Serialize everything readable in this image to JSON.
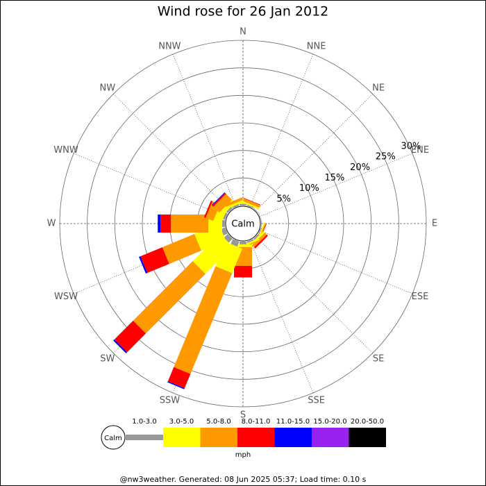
{
  "chart_data": {
    "type": "windrose",
    "title": "Wind rose for 26 Jan 2012",
    "center_label": "Calm",
    "directions": [
      "N",
      "NNE",
      "NE",
      "ENE",
      "E",
      "ESE",
      "SE",
      "SSE",
      "S",
      "SSW",
      "SW",
      "WSW",
      "W",
      "WNW",
      "NW",
      "NNW"
    ],
    "rlim": [
      0,
      30
    ],
    "rticks": [
      {
        "value": 5,
        "label": "5%"
      },
      {
        "value": 10,
        "label": "10%"
      },
      {
        "value": 15,
        "label": "15%"
      },
      {
        "value": 20,
        "label": "20%"
      },
      {
        "value": 25,
        "label": "25%"
      },
      {
        "value": 30,
        "label": "30%"
      }
    ],
    "units": "mph",
    "series": [
      {
        "name": "1.0-3.0",
        "color": "#999999",
        "values": [
          0.3,
          0.2,
          0.1,
          0.1,
          0.1,
          0.2,
          0.3,
          0.3,
          0.5,
          1.0,
          1.0,
          0.8,
          0.5,
          0.4,
          0.4,
          0.3
        ]
      },
      {
        "name": "3.0-5.0",
        "color": "#ffff00",
        "values": [
          0.2,
          0.3,
          0,
          0,
          0,
          0.2,
          0.4,
          0.3,
          0.5,
          4.8,
          7.0,
          4.8,
          2.5,
          1.5,
          0.8,
          0.4
        ]
      },
      {
        "name": "5.0-8.0",
        "color": "#ff9900",
        "values": [
          0.1,
          0.5,
          0,
          0,
          0,
          0.2,
          0.5,
          0.2,
          3.4,
          19.8,
          15.3,
          6.3,
          6.8,
          1.5,
          1.5,
          0.5
        ]
      },
      {
        "name": "8.0-11.0",
        "color": "#ff0000",
        "values": [
          0,
          0.1,
          0,
          0,
          0,
          0.1,
          0.3,
          0,
          2.1,
          2.8,
          4.8,
          4.3,
          1.9,
          0.3,
          0.3,
          0
        ]
      },
      {
        "name": "11.0-15.0",
        "color": "#0000ff",
        "values": [
          0,
          0,
          0,
          0,
          0,
          0,
          0,
          0,
          0,
          0.2,
          0.3,
          0.3,
          0.5,
          0,
          0.1,
          0
        ]
      },
      {
        "name": "15.0-20.0",
        "color": "#9922ee",
        "values": [
          0,
          0,
          0,
          0,
          0,
          0,
          0,
          0,
          0,
          0,
          0,
          0,
          0,
          0,
          0,
          0
        ]
      },
      {
        "name": "20.0-50.0",
        "color": "#000000",
        "values": [
          0,
          0,
          0,
          0,
          0,
          0,
          0,
          0,
          0,
          0,
          0,
          0,
          0,
          0,
          0,
          0
        ]
      }
    ],
    "footer": "@nw3weather. Generated: 08 Jun 2025 05:37; Load time: 0.10 s"
  }
}
